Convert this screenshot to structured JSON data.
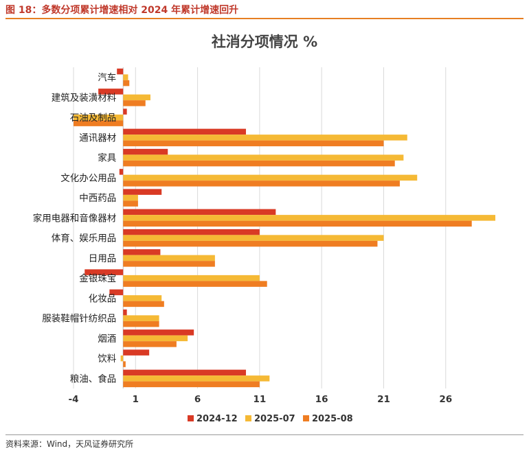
{
  "figure_caption": "图 18：多数分项累计增速相对 2024 年累计增速回升",
  "source": "资料来源：Wind，天风证券研究所",
  "chart_data": {
    "type": "bar",
    "orientation": "horizontal",
    "title": "社消分项情况 %",
    "categories": [
      "汽车",
      "建筑及装潢材料",
      "石油及制品",
      "通讯器材",
      "家具",
      "文化办公用品",
      "中西药品",
      "家用电器和音像器材",
      "体育、娱乐用品",
      "日用品",
      "金银珠宝",
      "化妆品",
      "服装鞋帽针纺织品",
      "烟酒",
      "饮料",
      "粮油、食品"
    ],
    "series": [
      {
        "name": "2024-12",
        "color": "#d93a25",
        "values": [
          -0.5,
          -2.0,
          0.3,
          9.9,
          3.6,
          -0.3,
          3.1,
          12.3,
          11.0,
          3.0,
          -3.1,
          -1.1,
          0.3,
          5.7,
          2.1,
          9.9
        ]
      },
      {
        "name": "2025-07",
        "color": "#f5b935",
        "values": [
          0.4,
          2.2,
          -4.0,
          22.9,
          22.6,
          23.7,
          1.2,
          30.0,
          21.0,
          7.4,
          11.0,
          3.1,
          2.9,
          5.2,
          -0.2,
          11.8
        ]
      },
      {
        "name": "2025-08",
        "color": "#ef7d22",
        "values": [
          0.5,
          1.8,
          -4.0,
          21.0,
          21.9,
          22.3,
          1.2,
          28.1,
          20.5,
          7.4,
          11.6,
          3.3,
          2.9,
          4.3,
          0.2,
          11.0
        ]
      }
    ],
    "xlim": [
      -4,
      30
    ],
    "xticks": [
      -4,
      1,
      6,
      11,
      16,
      21,
      26
    ],
    "grid": "vertical",
    "legend": "bottom"
  }
}
